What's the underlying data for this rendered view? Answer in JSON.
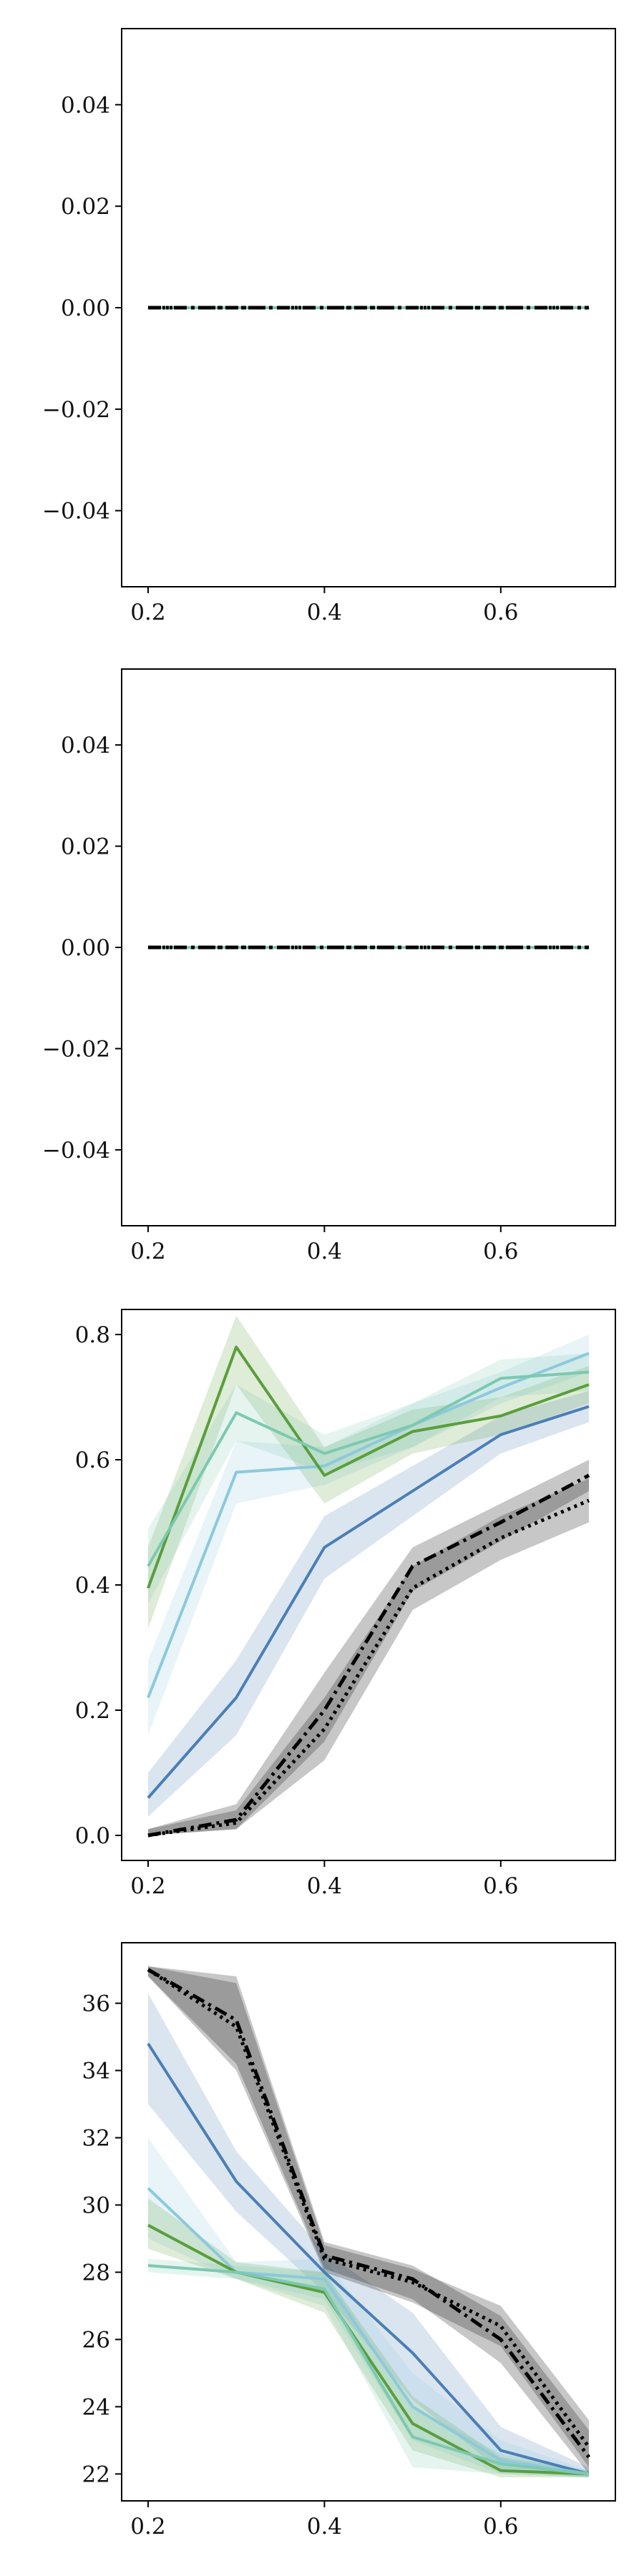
{
  "chart_data": [
    {
      "type": "line",
      "title": "",
      "xlabel": "",
      "ylabel": "",
      "xlim": [
        0.17,
        0.73
      ],
      "ylim": [
        -0.055,
        0.055
      ],
      "xticks": [
        0.2,
        0.4,
        0.6
      ],
      "xtick_labels": [
        "0.2",
        "0.4",
        "0.6"
      ],
      "yticks": [
        -0.04,
        -0.02,
        0.0,
        0.02,
        0.04
      ],
      "ytick_labels": [
        "−0.04",
        "−0.02",
        "0.00",
        "0.02",
        "0.04"
      ],
      "grid": false,
      "legend": false,
      "x": [
        0.2,
        0.3,
        0.4,
        0.5,
        0.6,
        0.7
      ],
      "series": [
        {
          "color": "#4a7fb5",
          "style": "solid",
          "values": [
            0,
            0,
            0,
            0,
            0,
            0
          ]
        },
        {
          "color": "#8cc9dd",
          "style": "solid",
          "values": [
            0,
            0,
            0,
            0,
            0,
            0
          ]
        },
        {
          "color": "#5a9e3c",
          "style": "solid",
          "values": [
            0,
            0,
            0,
            0,
            0,
            0
          ]
        },
        {
          "color": "#7cc9b0",
          "style": "solid",
          "values": [
            0,
            0,
            0,
            0,
            0,
            0
          ]
        },
        {
          "color": "#000000",
          "style": "dashdot",
          "values": [
            0,
            0,
            0,
            0,
            0,
            0
          ]
        },
        {
          "color": "#000000",
          "style": "dotted",
          "values": [
            0,
            0,
            0,
            0,
            0,
            0
          ]
        }
      ]
    },
    {
      "type": "line",
      "title": "",
      "xlabel": "",
      "ylabel": "",
      "xlim": [
        0.17,
        0.73
      ],
      "ylim": [
        -0.055,
        0.055
      ],
      "xticks": [
        0.2,
        0.4,
        0.6
      ],
      "xtick_labels": [
        "0.2",
        "0.4",
        "0.6"
      ],
      "yticks": [
        -0.04,
        -0.02,
        0.0,
        0.02,
        0.04
      ],
      "ytick_labels": [
        "−0.04",
        "−0.02",
        "0.00",
        "0.02",
        "0.04"
      ],
      "grid": false,
      "legend": false,
      "x": [
        0.2,
        0.3,
        0.4,
        0.5,
        0.6,
        0.7
      ],
      "series": [
        {
          "color": "#4a7fb5",
          "style": "solid",
          "values": [
            0,
            0,
            0,
            0,
            0,
            0
          ]
        },
        {
          "color": "#8cc9dd",
          "style": "solid",
          "values": [
            0,
            0,
            0,
            0,
            0,
            0
          ]
        },
        {
          "color": "#5a9e3c",
          "style": "solid",
          "values": [
            0,
            0,
            0,
            0,
            0,
            0
          ]
        },
        {
          "color": "#7cc9b0",
          "style": "solid",
          "values": [
            0,
            0,
            0,
            0,
            0,
            0
          ]
        },
        {
          "color": "#000000",
          "style": "dashdot",
          "values": [
            0,
            0,
            0,
            0,
            0,
            0
          ]
        },
        {
          "color": "#000000",
          "style": "dotted",
          "values": [
            0,
            0,
            0,
            0,
            0,
            0
          ]
        }
      ]
    },
    {
      "type": "line",
      "title": "",
      "xlabel": "",
      "ylabel": "",
      "xlim": [
        0.17,
        0.73
      ],
      "ylim": [
        -0.04,
        0.84
      ],
      "xticks": [
        0.2,
        0.4,
        0.6
      ],
      "xtick_labels": [
        "0.2",
        "0.4",
        "0.6"
      ],
      "yticks": [
        0.0,
        0.2,
        0.4,
        0.6,
        0.8
      ],
      "ytick_labels": [
        "0.0",
        "0.2",
        "0.4",
        "0.6",
        "0.8"
      ],
      "grid": false,
      "legend": false,
      "x": [
        0.2,
        0.3,
        0.4,
        0.5,
        0.6,
        0.7
      ],
      "series": [
        {
          "color": "#4a7fb5",
          "style": "solid",
          "values": [
            0.06,
            0.22,
            0.46,
            0.55,
            0.64,
            0.685
          ],
          "lower": [
            0.03,
            0.16,
            0.41,
            0.51,
            0.61,
            0.66
          ],
          "upper": [
            0.1,
            0.28,
            0.51,
            0.59,
            0.67,
            0.71
          ]
        },
        {
          "color": "#8cc9dd",
          "style": "solid",
          "values": [
            0.22,
            0.58,
            0.59,
            0.655,
            0.715,
            0.77
          ],
          "lower": [
            0.16,
            0.53,
            0.56,
            0.62,
            0.69,
            0.74
          ],
          "upper": [
            0.28,
            0.63,
            0.62,
            0.69,
            0.74,
            0.8
          ]
        },
        {
          "color": "#5a9e3c",
          "style": "solid",
          "values": [
            0.395,
            0.78,
            0.575,
            0.645,
            0.67,
            0.72
          ],
          "lower": [
            0.33,
            0.72,
            0.53,
            0.61,
            0.64,
            0.69
          ],
          "upper": [
            0.46,
            0.83,
            0.62,
            0.68,
            0.7,
            0.75
          ]
        },
        {
          "color": "#7cc9b0",
          "style": "solid",
          "values": [
            0.43,
            0.675,
            0.61,
            0.655,
            0.73,
            0.74
          ],
          "lower": [
            0.37,
            0.63,
            0.58,
            0.62,
            0.7,
            0.71
          ],
          "upper": [
            0.49,
            0.72,
            0.64,
            0.69,
            0.76,
            0.77
          ]
        },
        {
          "color": "#000000",
          "style": "dashdot",
          "values": [
            0.0,
            0.025,
            0.2,
            0.43,
            0.5,
            0.575
          ],
          "lower": [
            0.0,
            0.01,
            0.15,
            0.39,
            0.47,
            0.55
          ],
          "upper": [
            0.01,
            0.05,
            0.26,
            0.46,
            0.53,
            0.6
          ]
        },
        {
          "color": "#000000",
          "style": "dotted",
          "values": [
            0.0,
            0.02,
            0.17,
            0.395,
            0.475,
            0.535
          ],
          "lower": [
            0.0,
            0.01,
            0.12,
            0.36,
            0.44,
            0.5
          ],
          "upper": [
            0.01,
            0.04,
            0.22,
            0.43,
            0.51,
            0.57
          ]
        }
      ]
    },
    {
      "type": "line",
      "title": "",
      "xlabel": "",
      "ylabel": "",
      "xlim": [
        0.17,
        0.73
      ],
      "ylim": [
        21.2,
        37.8
      ],
      "xticks": [
        0.2,
        0.4,
        0.6
      ],
      "xtick_labels": [
        "0.2",
        "0.4",
        "0.6"
      ],
      "yticks": [
        22,
        24,
        26,
        28,
        30,
        32,
        34,
        36
      ],
      "ytick_labels": [
        "22",
        "24",
        "26",
        "28",
        "30",
        "32",
        "34",
        "36"
      ],
      "grid": false,
      "legend": false,
      "x": [
        0.2,
        0.3,
        0.4,
        0.5,
        0.6,
        0.7
      ],
      "series": [
        {
          "color": "#4a7fb5",
          "style": "solid",
          "values": [
            34.8,
            30.7,
            28.0,
            25.6,
            22.7,
            22.0
          ],
          "lower": [
            33.0,
            29.8,
            27.4,
            24.2,
            22.1,
            21.9
          ],
          "upper": [
            36.3,
            31.6,
            28.6,
            26.8,
            23.4,
            22.2
          ]
        },
        {
          "color": "#8cc9dd",
          "style": "solid",
          "values": [
            30.5,
            28.0,
            27.8,
            24.0,
            22.4,
            22.0
          ],
          "lower": [
            29.0,
            27.8,
            27.2,
            23.0,
            22.0,
            21.9
          ],
          "upper": [
            32.0,
            28.3,
            28.4,
            25.0,
            23.0,
            22.1
          ]
        },
        {
          "color": "#5a9e3c",
          "style": "solid",
          "values": [
            29.4,
            28.0,
            27.4,
            23.5,
            22.1,
            22.0
          ],
          "lower": [
            28.7,
            27.8,
            26.8,
            22.7,
            21.9,
            21.9
          ],
          "upper": [
            30.2,
            28.3,
            28.0,
            24.3,
            22.5,
            22.1
          ]
        },
        {
          "color": "#7cc9b0",
          "style": "solid",
          "values": [
            28.2,
            28.0,
            27.5,
            23.1,
            22.3,
            22.0
          ],
          "lower": [
            28.0,
            27.8,
            27.0,
            22.2,
            22.0,
            21.9
          ],
          "upper": [
            28.4,
            28.2,
            28.0,
            24.0,
            22.6,
            22.1
          ]
        },
        {
          "color": "#000000",
          "style": "dashdot",
          "values": [
            37.0,
            35.5,
            28.5,
            27.8,
            26.0,
            22.5
          ],
          "lower": [
            36.8,
            34.2,
            28.1,
            27.2,
            25.3,
            22.0
          ],
          "upper": [
            37.1,
            36.8,
            28.9,
            28.2,
            26.7,
            23.3
          ]
        },
        {
          "color": "#000000",
          "style": "dotted",
          "values": [
            37.0,
            35.3,
            28.4,
            27.7,
            26.4,
            22.8
          ],
          "lower": [
            36.8,
            34.0,
            28.0,
            27.1,
            25.8,
            22.2
          ],
          "upper": [
            37.1,
            36.6,
            28.8,
            28.1,
            27.0,
            23.6
          ]
        }
      ]
    }
  ]
}
